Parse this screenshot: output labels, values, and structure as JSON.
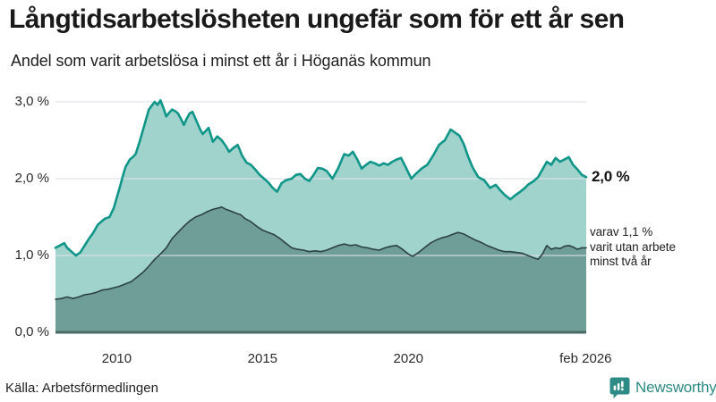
{
  "header": {
    "title": "Långtidsarbetslösheten ungefär som för ett år sen",
    "subtitle": "Andel som varit arbetslösa i minst ett år i Höganäs kommun"
  },
  "source": {
    "label": "Källa: Arbetsförmedlingen"
  },
  "branding": {
    "logo_text": "Newsworthy",
    "logo_icon": "bar-chart-speech-bubble-icon",
    "logo_color": "#2e8a85"
  },
  "colors": {
    "series1_fill": "#9fd3cc",
    "series1_line": "#109689",
    "series2_fill": "#6f9e98",
    "series2_line": "#2d4046",
    "baseline": "#4a6a64",
    "gridline": "#dfe1e8",
    "text": "#1a1a1a"
  },
  "chart_data": {
    "type": "area",
    "title": "Långtidsarbetslösheten ungefär som för ett år sen",
    "subtitle": "Andel som varit arbetslösa i minst ett år i Höganäs kommun",
    "xlabel": "",
    "ylabel": "",
    "unit": "%",
    "xlim": [
      2007.9,
      2026.1
    ],
    "ylim": [
      0,
      3
    ],
    "grid": "horizontal",
    "legend_position": "none",
    "end_label": "2,0 %",
    "annotation": {
      "lines": [
        "varav 1,1 %",
        "varit utan arbete",
        "minst två år"
      ]
    },
    "yticks": [
      {
        "label": "3,0 %",
        "value": 3.0
      },
      {
        "label": "2,0 %",
        "value": 2.0
      },
      {
        "label": "1,0 %",
        "value": 1.0
      },
      {
        "label": "0,0 %",
        "value": 0.0
      }
    ],
    "xticks": [
      {
        "label": "2010",
        "value": 2010
      },
      {
        "label": "2015",
        "value": 2015
      },
      {
        "label": "2020",
        "value": 2020
      },
      {
        "label": "feb 2026",
        "value": 2026.08
      }
    ],
    "series": [
      {
        "name": "arbetslösa minst ett år",
        "last_value": 2.0,
        "points": [
          [
            2007.9,
            1.1
          ],
          [
            2008.05,
            1.13
          ],
          [
            2008.2,
            1.16
          ],
          [
            2008.3,
            1.1
          ],
          [
            2008.45,
            1.05
          ],
          [
            2008.6,
            1.0
          ],
          [
            2008.75,
            1.04
          ],
          [
            2008.9,
            1.13
          ],
          [
            2009.05,
            1.22
          ],
          [
            2009.2,
            1.3
          ],
          [
            2009.35,
            1.4
          ],
          [
            2009.5,
            1.45
          ],
          [
            2009.6,
            1.48
          ],
          [
            2009.75,
            1.5
          ],
          [
            2009.9,
            1.62
          ],
          [
            2010.0,
            1.75
          ],
          [
            2010.1,
            1.88
          ],
          [
            2010.2,
            2.02
          ],
          [
            2010.3,
            2.15
          ],
          [
            2010.45,
            2.25
          ],
          [
            2010.55,
            2.28
          ],
          [
            2010.65,
            2.32
          ],
          [
            2010.8,
            2.5
          ],
          [
            2010.95,
            2.7
          ],
          [
            2011.1,
            2.9
          ],
          [
            2011.2,
            2.95
          ],
          [
            2011.3,
            3.0
          ],
          [
            2011.4,
            2.96
          ],
          [
            2011.5,
            3.02
          ],
          [
            2011.6,
            2.92
          ],
          [
            2011.7,
            2.81
          ],
          [
            2011.8,
            2.86
          ],
          [
            2011.9,
            2.9
          ],
          [
            2012.0,
            2.88
          ],
          [
            2012.1,
            2.85
          ],
          [
            2012.2,
            2.78
          ],
          [
            2012.3,
            2.7
          ],
          [
            2012.4,
            2.78
          ],
          [
            2012.5,
            2.85
          ],
          [
            2012.6,
            2.87
          ],
          [
            2012.7,
            2.78
          ],
          [
            2012.85,
            2.65
          ],
          [
            2012.95,
            2.58
          ],
          [
            2013.05,
            2.62
          ],
          [
            2013.15,
            2.66
          ],
          [
            2013.3,
            2.48
          ],
          [
            2013.45,
            2.55
          ],
          [
            2013.6,
            2.5
          ],
          [
            2013.75,
            2.42
          ],
          [
            2013.85,
            2.35
          ],
          [
            2014.0,
            2.4
          ],
          [
            2014.15,
            2.44
          ],
          [
            2014.3,
            2.3
          ],
          [
            2014.45,
            2.21
          ],
          [
            2014.6,
            2.18
          ],
          [
            2014.75,
            2.12
          ],
          [
            2014.9,
            2.05
          ],
          [
            2015.05,
            2.0
          ],
          [
            2015.2,
            1.95
          ],
          [
            2015.35,
            1.88
          ],
          [
            2015.5,
            1.83
          ],
          [
            2015.65,
            1.94
          ],
          [
            2015.8,
            1.98
          ],
          [
            2016.0,
            2.0
          ],
          [
            2016.15,
            2.05
          ],
          [
            2016.3,
            2.06
          ],
          [
            2016.45,
            2.0
          ],
          [
            2016.6,
            1.97
          ],
          [
            2016.75,
            2.05
          ],
          [
            2016.9,
            2.14
          ],
          [
            2017.05,
            2.13
          ],
          [
            2017.2,
            2.1
          ],
          [
            2017.4,
            2.0
          ],
          [
            2017.6,
            2.14
          ],
          [
            2017.8,
            2.32
          ],
          [
            2017.95,
            2.3
          ],
          [
            2018.1,
            2.35
          ],
          [
            2018.25,
            2.25
          ],
          [
            2018.4,
            2.13
          ],
          [
            2018.55,
            2.18
          ],
          [
            2018.7,
            2.22
          ],
          [
            2018.85,
            2.2
          ],
          [
            2019.0,
            2.17
          ],
          [
            2019.15,
            2.2
          ],
          [
            2019.3,
            2.18
          ],
          [
            2019.45,
            2.22
          ],
          [
            2019.6,
            2.25
          ],
          [
            2019.75,
            2.27
          ],
          [
            2019.95,
            2.12
          ],
          [
            2020.1,
            2.0
          ],
          [
            2020.25,
            2.06
          ],
          [
            2020.45,
            2.13
          ],
          [
            2020.65,
            2.18
          ],
          [
            2020.85,
            2.3
          ],
          [
            2021.05,
            2.44
          ],
          [
            2021.25,
            2.5
          ],
          [
            2021.45,
            2.64
          ],
          [
            2021.6,
            2.6
          ],
          [
            2021.75,
            2.56
          ],
          [
            2021.9,
            2.45
          ],
          [
            2022.05,
            2.29
          ],
          [
            2022.2,
            2.15
          ],
          [
            2022.4,
            2.02
          ],
          [
            2022.6,
            1.98
          ],
          [
            2022.8,
            1.88
          ],
          [
            2023.0,
            1.92
          ],
          [
            2023.15,
            1.85
          ],
          [
            2023.3,
            1.79
          ],
          [
            2023.5,
            1.73
          ],
          [
            2023.65,
            1.78
          ],
          [
            2023.8,
            1.82
          ],
          [
            2024.0,
            1.88
          ],
          [
            2024.1,
            1.92
          ],
          [
            2024.3,
            1.97
          ],
          [
            2024.45,
            2.02
          ],
          [
            2024.6,
            2.12
          ],
          [
            2024.75,
            2.22
          ],
          [
            2024.9,
            2.18
          ],
          [
            2025.05,
            2.27
          ],
          [
            2025.2,
            2.22
          ],
          [
            2025.35,
            2.25
          ],
          [
            2025.5,
            2.28
          ],
          [
            2025.65,
            2.18
          ],
          [
            2025.8,
            2.12
          ],
          [
            2025.95,
            2.05
          ],
          [
            2026.1,
            2.02
          ]
        ]
      },
      {
        "name": "varav utan arbete minst två år",
        "last_value": 1.1,
        "points": [
          [
            2007.9,
            0.43
          ],
          [
            2008.1,
            0.44
          ],
          [
            2008.3,
            0.46
          ],
          [
            2008.5,
            0.44
          ],
          [
            2008.7,
            0.46
          ],
          [
            2008.9,
            0.49
          ],
          [
            2009.1,
            0.5
          ],
          [
            2009.3,
            0.52
          ],
          [
            2009.5,
            0.55
          ],
          [
            2009.7,
            0.56
          ],
          [
            2009.9,
            0.58
          ],
          [
            2010.1,
            0.6
          ],
          [
            2010.3,
            0.63
          ],
          [
            2010.5,
            0.66
          ],
          [
            2010.7,
            0.72
          ],
          [
            2010.9,
            0.78
          ],
          [
            2011.1,
            0.86
          ],
          [
            2011.3,
            0.95
          ],
          [
            2011.5,
            1.02
          ],
          [
            2011.7,
            1.1
          ],
          [
            2011.9,
            1.22
          ],
          [
            2012.1,
            1.3
          ],
          [
            2012.3,
            1.38
          ],
          [
            2012.5,
            1.45
          ],
          [
            2012.7,
            1.5
          ],
          [
            2012.9,
            1.53
          ],
          [
            2013.1,
            1.57
          ],
          [
            2013.3,
            1.6
          ],
          [
            2013.5,
            1.62
          ],
          [
            2013.6,
            1.63
          ],
          [
            2013.75,
            1.6
          ],
          [
            2013.9,
            1.58
          ],
          [
            2014.1,
            1.55
          ],
          [
            2014.25,
            1.53
          ],
          [
            2014.4,
            1.48
          ],
          [
            2014.6,
            1.44
          ],
          [
            2014.8,
            1.38
          ],
          [
            2015.0,
            1.33
          ],
          [
            2015.2,
            1.3
          ],
          [
            2015.4,
            1.27
          ],
          [
            2015.6,
            1.22
          ],
          [
            2015.8,
            1.16
          ],
          [
            2016.0,
            1.1
          ],
          [
            2016.2,
            1.08
          ],
          [
            2016.4,
            1.07
          ],
          [
            2016.6,
            1.05
          ],
          [
            2016.8,
            1.06
          ],
          [
            2017.0,
            1.05
          ],
          [
            2017.2,
            1.07
          ],
          [
            2017.4,
            1.1
          ],
          [
            2017.6,
            1.13
          ],
          [
            2017.8,
            1.15
          ],
          [
            2018.0,
            1.13
          ],
          [
            2018.2,
            1.14
          ],
          [
            2018.4,
            1.11
          ],
          [
            2018.6,
            1.1
          ],
          [
            2018.8,
            1.08
          ],
          [
            2019.0,
            1.07
          ],
          [
            2019.2,
            1.1
          ],
          [
            2019.4,
            1.12
          ],
          [
            2019.6,
            1.13
          ],
          [
            2019.8,
            1.08
          ],
          [
            2020.0,
            1.02
          ],
          [
            2020.15,
            0.99
          ],
          [
            2020.35,
            1.04
          ],
          [
            2020.55,
            1.1
          ],
          [
            2020.75,
            1.16
          ],
          [
            2020.95,
            1.2
          ],
          [
            2021.15,
            1.23
          ],
          [
            2021.35,
            1.25
          ],
          [
            2021.55,
            1.28
          ],
          [
            2021.7,
            1.3
          ],
          [
            2021.9,
            1.28
          ],
          [
            2022.1,
            1.24
          ],
          [
            2022.3,
            1.2
          ],
          [
            2022.5,
            1.17
          ],
          [
            2022.7,
            1.13
          ],
          [
            2022.9,
            1.1
          ],
          [
            2023.1,
            1.07
          ],
          [
            2023.3,
            1.05
          ],
          [
            2023.5,
            1.05
          ],
          [
            2023.7,
            1.04
          ],
          [
            2023.9,
            1.03
          ],
          [
            2024.1,
            1.0
          ],
          [
            2024.3,
            0.97
          ],
          [
            2024.45,
            0.95
          ],
          [
            2024.6,
            1.02
          ],
          [
            2024.75,
            1.13
          ],
          [
            2024.9,
            1.08
          ],
          [
            2025.05,
            1.1
          ],
          [
            2025.2,
            1.09
          ],
          [
            2025.35,
            1.12
          ],
          [
            2025.5,
            1.13
          ],
          [
            2025.65,
            1.11
          ],
          [
            2025.8,
            1.08
          ],
          [
            2025.95,
            1.1
          ],
          [
            2026.1,
            1.1
          ]
        ]
      }
    ]
  }
}
